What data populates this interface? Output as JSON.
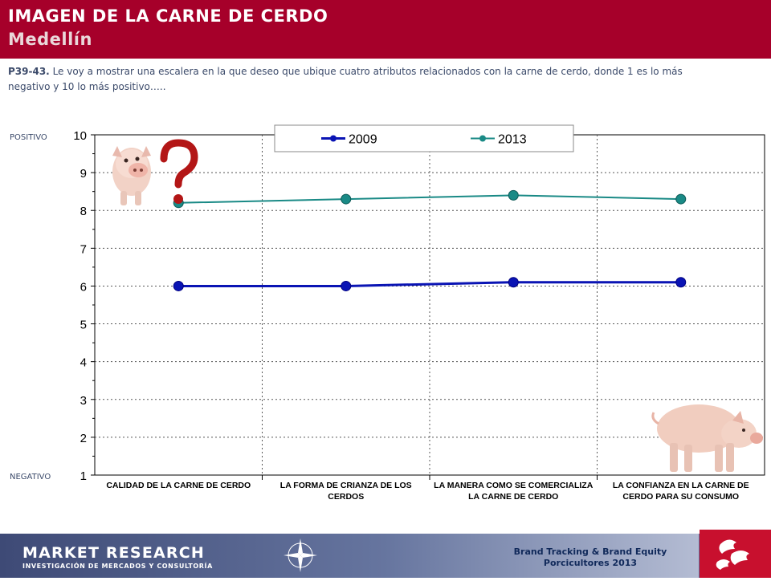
{
  "header": {
    "title": "IMAGEN DE LA CARNE DE CERDO",
    "subtitle": "Medellín"
  },
  "question": {
    "code": "P39-43.",
    "text": "Le voy a mostrar una escalera en la que deseo que ubique cuatro atributos relacionados con la carne de cerdo, donde 1 es lo más negativo y 10 lo más positivo….."
  },
  "labels": {
    "positive": "POSITIVO",
    "negative": "NEGATIVO"
  },
  "chart_data": {
    "type": "line",
    "categories": [
      "CALIDAD DE LA CARNE DE CERDO",
      "LA FORMA DE CRIANZA DE LOS CERDOS",
      "LA MANERA COMO SE COMERCIALIZA LA CARNE DE CERDO",
      "LA CONFIANZA EN LA CARNE DE CERDO PARA SU CONSUMO"
    ],
    "series": [
      {
        "name": "2009",
        "values": [
          6.0,
          6.0,
          6.1,
          6.1
        ],
        "color": "#0a14b4"
      },
      {
        "name": "2013",
        "values": [
          8.2,
          8.3,
          8.4,
          8.3
        ],
        "color": "#1a8a86"
      }
    ],
    "ylim": [
      1,
      10
    ],
    "yticks": [
      1,
      2,
      3,
      4,
      5,
      6,
      7,
      8,
      9,
      10
    ],
    "grid": true,
    "legend_position": "top"
  },
  "footer": {
    "logo_main": "MARKET RESEARCH",
    "logo_sub": "INVESTIGACIÓN DE MERCADOS Y CONSULTORÍA",
    "brand_line1": "Brand Tracking & Brand Equity",
    "brand_line2": "Porcicultores 2013"
  },
  "images": {
    "pig_question": "pig-question-image",
    "pig_standing": "pig-standing-image"
  }
}
